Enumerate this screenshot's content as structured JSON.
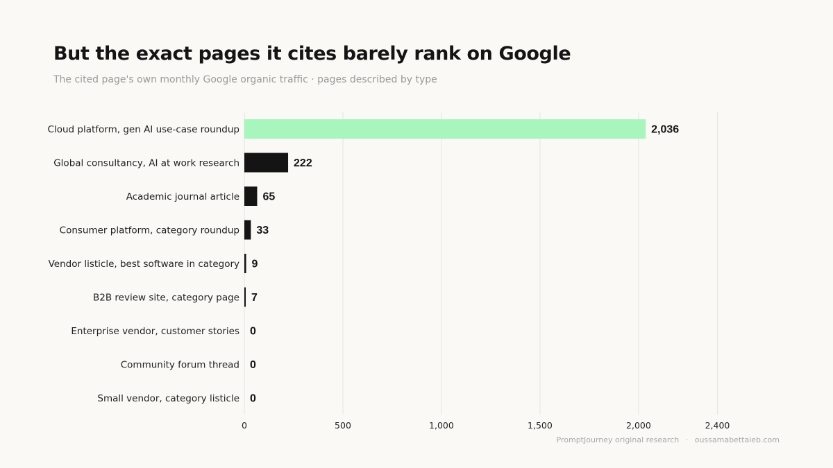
{
  "title": "But the exact pages it cites barely rank on Google",
  "subtitle": "The cited page's own monthly Google organic traffic · pages described by type",
  "footer": {
    "source": "PromptJourney original research",
    "separator": "·",
    "site": "oussamabettaieb.com"
  },
  "colors": {
    "highlight": "#a8f5bd",
    "bar": "#141414",
    "grid": "#e6e4df",
    "background": "#faf9f6"
  },
  "chart_data": {
    "type": "bar",
    "orientation": "horizontal",
    "categories": [
      "Cloud platform, gen AI use-case roundup",
      "Global consultancy, AI at work research",
      "Academic journal article",
      "Consumer platform, category roundup",
      "Vendor listicle, best software in category",
      "B2B review site, category page",
      "Enterprise vendor, customer stories",
      "Community forum thread",
      "Small vendor, category listicle"
    ],
    "values": [
      2036,
      222,
      65,
      33,
      9,
      7,
      0,
      0,
      0
    ],
    "value_labels": [
      "2,036",
      "222",
      "65",
      "33",
      "9",
      "7",
      "0",
      "0",
      "0"
    ],
    "highlight_index": 0,
    "xticks": [
      0,
      500,
      1000,
      1500,
      2000,
      2400
    ],
    "xtick_labels": [
      "0",
      "500",
      "1,000",
      "1,500",
      "2,000",
      "2,400"
    ],
    "xlim": [
      0,
      2400
    ],
    "grid": true,
    "legend": "none"
  }
}
